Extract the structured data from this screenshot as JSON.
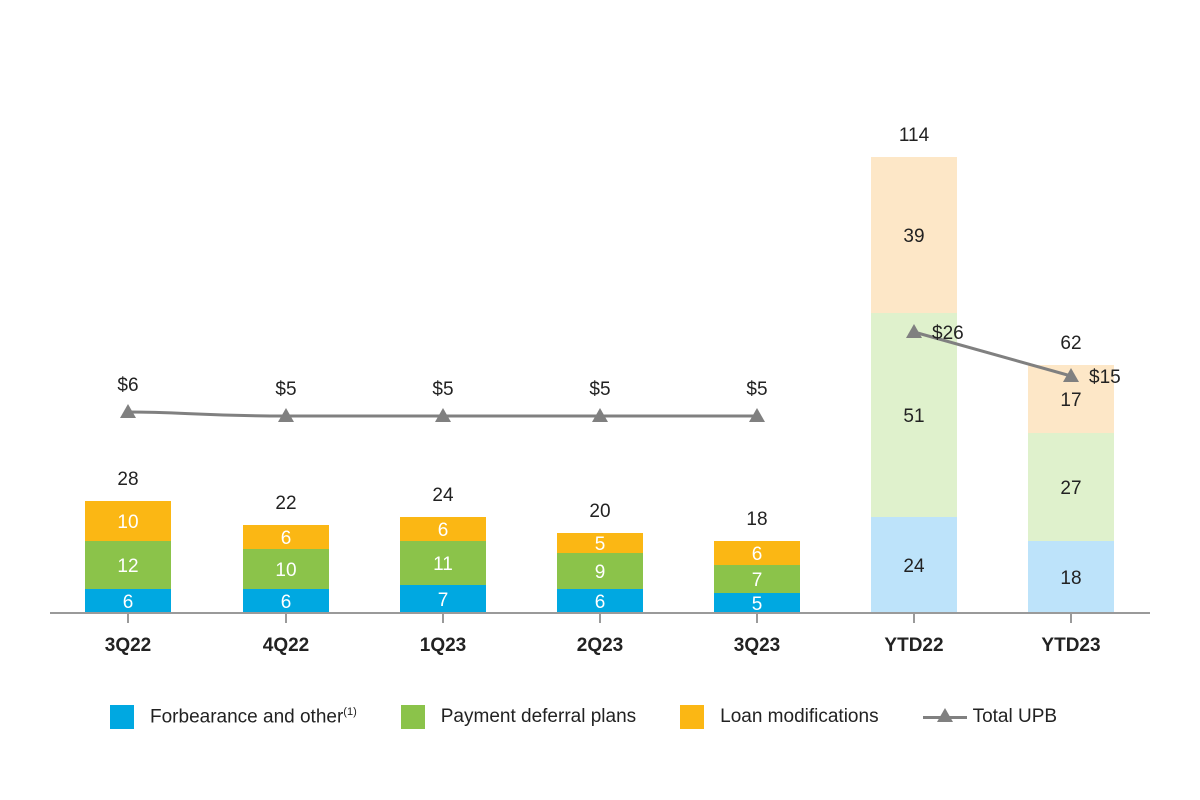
{
  "chart_data": {
    "type": "bar",
    "stacked": true,
    "title": "",
    "xlabel": "",
    "ylabel": "",
    "categories": [
      "3Q22",
      "4Q22",
      "1Q23",
      "2Q23",
      "3Q23",
      "YTD22",
      "YTD23"
    ],
    "series": [
      {
        "name": "Forbearance and other",
        "name_superscript": "(1)",
        "color": "#00a8e1",
        "light_color": "#bde3fa",
        "values": [
          6,
          6,
          7,
          6,
          5,
          24,
          18
        ]
      },
      {
        "name": "Payment deferral plans",
        "color": "#8bc34a",
        "light_color": "#dff1cc",
        "values": [
          12,
          10,
          11,
          9,
          7,
          51,
          27
        ]
      },
      {
        "name": "Loan modifications",
        "color": "#fbb714",
        "light_color": "#fde7c7",
        "values": [
          10,
          6,
          6,
          5,
          6,
          39,
          17
        ]
      }
    ],
    "totals": [
      "28",
      "22",
      "24",
      "20",
      "18",
      "114",
      "62"
    ],
    "light_categories": [
      "YTD22",
      "YTD23"
    ],
    "line_series": {
      "name": "Total UPB",
      "color": "#808080",
      "quarterly": {
        "categories": [
          "3Q22",
          "4Q22",
          "1Q23",
          "2Q23",
          "3Q23"
        ],
        "values": [
          6,
          5,
          5,
          5,
          5
        ],
        "labels": [
          "$6",
          "$5",
          "$5",
          "$5",
          "$5"
        ]
      },
      "ytd": {
        "categories": [
          "YTD22",
          "YTD23"
        ],
        "values": [
          26,
          15
        ],
        "labels": [
          "$26",
          "$15"
        ]
      }
    },
    "legend_position": "bottom",
    "grid": false
  }
}
